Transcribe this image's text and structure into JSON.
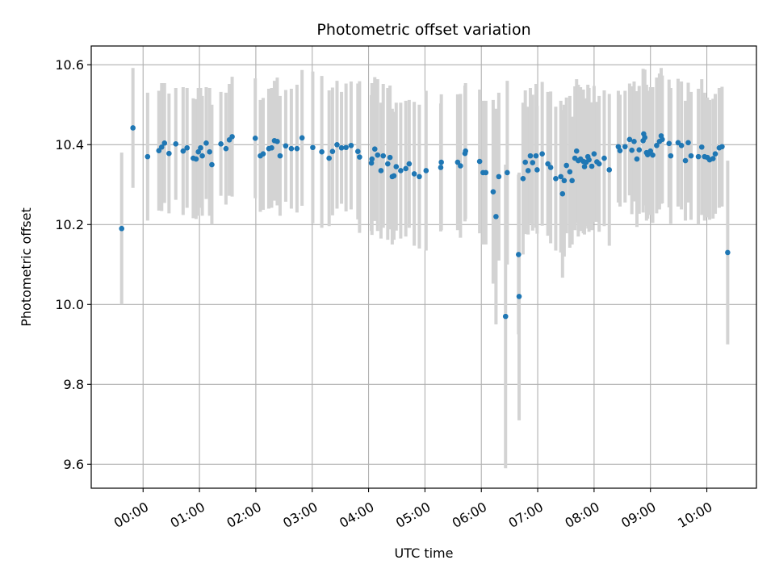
{
  "chart_data": {
    "type": "scatter",
    "title": "Photometric offset variation",
    "xlabel": "UTC time",
    "ylabel": "Photometric offset",
    "x_unit": "hours UTC",
    "xlim": [
      -0.92,
      10.88
    ],
    "ylim": [
      9.54,
      10.647
    ],
    "xticks": [
      0,
      1,
      2,
      3,
      4,
      5,
      6,
      7,
      8,
      9,
      10
    ],
    "xtick_labels": [
      "00:00",
      "01:00",
      "02:00",
      "03:00",
      "04:00",
      "05:00",
      "06:00",
      "07:00",
      "08:00",
      "09:00",
      "10:00"
    ],
    "yticks": [
      9.6,
      9.8,
      10.0,
      10.2,
      10.4,
      10.6
    ],
    "ytick_labels": [
      "9.6",
      "9.8",
      "10.0",
      "10.2",
      "10.4",
      "10.6"
    ],
    "grid": true,
    "legend": "none",
    "colors": {
      "point": "#1f77b4",
      "errorbar": "#d3d3d3",
      "grid": "#b0b0b0"
    },
    "series": [
      {
        "x": [
          -0.38,
          -0.18,
          0.08,
          0.28,
          0.33,
          0.38,
          0.46,
          0.58,
          0.71,
          0.78,
          0.89,
          0.94,
          0.98,
          1.02,
          1.05,
          1.12,
          1.18,
          1.22,
          1.38,
          1.47,
          1.53,
          1.58,
          1.99,
          2.08,
          2.13,
          2.23,
          2.28,
          2.33,
          2.38,
          2.43,
          2.53,
          2.63,
          2.73,
          2.82,
          3.01,
          3.17,
          3.3,
          3.36,
          3.44,
          3.52,
          3.6,
          3.69,
          3.81,
          3.84,
          4.05,
          4.06,
          4.11,
          4.16,
          4.22,
          4.26,
          4.34,
          4.38,
          4.42,
          4.45,
          4.49,
          4.57,
          4.66,
          4.72,
          4.81,
          4.9,
          5.02,
          5.28,
          5.29,
          5.58,
          5.63,
          5.71,
          5.72,
          5.97,
          6.03,
          6.08,
          6.21,
          6.26,
          6.31,
          6.43,
          6.46,
          6.66,
          6.67,
          6.74,
          6.78,
          6.83,
          6.87,
          6.91,
          6.97,
          6.99,
          7.08,
          7.18,
          7.23,
          7.32,
          7.41,
          7.44,
          7.47,
          7.51,
          7.57,
          7.61,
          7.66,
          7.69,
          7.72,
          7.76,
          7.81,
          7.83,
          7.86,
          7.89,
          7.91,
          7.96,
          8.0,
          8.05,
          8.09,
          8.18,
          8.27,
          8.43,
          8.46,
          8.55,
          8.63,
          8.67,
          8.71,
          8.76,
          8.8,
          8.87,
          8.88,
          8.9,
          8.93,
          8.95,
          8.98,
          9.0,
          9.04,
          9.11,
          9.16,
          9.19,
          9.21,
          9.33,
          9.36,
          9.49,
          9.55,
          9.62,
          9.67,
          9.72,
          9.85,
          9.91,
          9.96,
          10.01,
          10.05,
          10.11,
          10.15,
          10.22,
          10.27,
          10.37
        ],
        "y": [
          10.19,
          10.442,
          10.37,
          10.385,
          10.394,
          10.404,
          10.378,
          10.402,
          10.384,
          10.392,
          10.366,
          10.364,
          10.382,
          10.392,
          10.372,
          10.404,
          10.382,
          10.35,
          10.402,
          10.39,
          10.412,
          10.42,
          10.416,
          10.372,
          10.377,
          10.39,
          10.392,
          10.41,
          10.408,
          10.372,
          10.397,
          10.39,
          10.39,
          10.417,
          10.393,
          10.382,
          10.366,
          10.383,
          10.4,
          10.392,
          10.393,
          10.398,
          10.383,
          10.369,
          10.354,
          10.364,
          10.389,
          10.374,
          10.335,
          10.372,
          10.352,
          10.368,
          10.32,
          10.322,
          10.345,
          10.335,
          10.34,
          10.352,
          10.327,
          10.32,
          10.335,
          10.343,
          10.356,
          10.356,
          10.347,
          10.378,
          10.384,
          10.358,
          10.33,
          10.33,
          10.282,
          10.22,
          10.32,
          9.97,
          10.33,
          10.125,
          10.02,
          10.315,
          10.356,
          10.335,
          10.372,
          10.355,
          10.372,
          10.337,
          10.377,
          10.352,
          10.343,
          10.315,
          10.32,
          10.277,
          10.31,
          10.348,
          10.332,
          10.31,
          10.366,
          10.384,
          10.36,
          10.364,
          10.358,
          10.345,
          10.356,
          10.37,
          10.362,
          10.346,
          10.377,
          10.357,
          10.352,
          10.366,
          10.337,
          10.395,
          10.385,
          10.395,
          10.413,
          10.386,
          10.408,
          10.364,
          10.387,
          10.41,
          10.427,
          10.418,
          10.38,
          10.375,
          10.38,
          10.384,
          10.374,
          10.398,
          10.408,
          10.422,
          10.413,
          10.403,
          10.372,
          10.405,
          10.398,
          10.36,
          10.405,
          10.372,
          10.37,
          10.394,
          10.37,
          10.368,
          10.362,
          10.365,
          10.377,
          10.392,
          10.395,
          10.13
        ],
        "yerr": [
          0.19,
          0.15,
          0.16,
          0.15,
          0.16,
          0.15,
          0.15,
          0.14,
          0.16,
          0.15,
          0.15,
          0.15,
          0.16,
          0.15,
          0.15,
          0.14,
          0.16,
          0.15,
          0.13,
          0.14,
          0.14,
          0.15,
          0.15,
          0.14,
          0.14,
          0.15,
          0.15,
          0.15,
          0.16,
          0.15,
          0.14,
          0.15,
          0.16,
          0.17,
          0.19,
          0.19,
          0.17,
          0.16,
          0.16,
          0.14,
          0.16,
          0.16,
          0.17,
          0.19,
          0.17,
          0.19,
          0.18,
          0.19,
          0.17,
          0.18,
          0.19,
          0.18,
          0.17,
          0.16,
          0.16,
          0.17,
          0.17,
          0.16,
          0.18,
          0.18,
          0.2,
          0.16,
          0.17,
          0.17,
          0.18,
          0.17,
          0.17,
          0.18,
          0.18,
          0.18,
          0.23,
          0.27,
          0.21,
          0.38,
          0.23,
          0.2,
          0.31,
          0.19,
          0.18,
          0.16,
          0.17,
          0.17,
          0.18,
          0.16,
          0.18,
          0.18,
          0.19,
          0.18,
          0.19,
          0.21,
          0.19,
          0.17,
          0.19,
          0.16,
          0.18,
          0.18,
          0.19,
          0.18,
          0.18,
          0.17,
          0.16,
          0.18,
          0.18,
          0.16,
          0.17,
          0.15,
          0.17,
          0.17,
          0.19,
          0.14,
          0.14,
          0.14,
          0.14,
          0.16,
          0.15,
          0.17,
          0.16,
          0.18,
          0.15,
          0.17,
          0.17,
          0.16,
          0.15,
          0.16,
          0.17,
          0.17,
          0.17,
          0.17,
          0.16,
          0.16,
          0.17,
          0.16,
          0.16,
          0.15,
          0.15,
          0.16,
          0.17,
          0.17,
          0.16,
          0.15,
          0.15,
          0.15,
          0.15,
          0.15,
          0.15,
          0.23
        ]
      }
    ]
  }
}
